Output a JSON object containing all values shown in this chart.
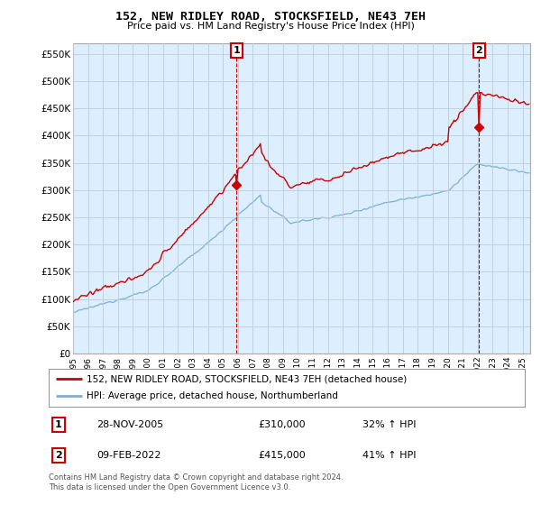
{
  "title": "152, NEW RIDLEY ROAD, STOCKSFIELD, NE43 7EH",
  "subtitle": "Price paid vs. HM Land Registry's House Price Index (HPI)",
  "yticks": [
    0,
    50000,
    100000,
    150000,
    200000,
    250000,
    300000,
    350000,
    400000,
    450000,
    500000,
    550000
  ],
  "ytick_labels": [
    "£0",
    "£50K",
    "£100K",
    "£150K",
    "£200K",
    "£250K",
    "£300K",
    "£350K",
    "£400K",
    "£450K",
    "£500K",
    "£550K"
  ],
  "xlim_start": 1995.0,
  "xlim_end": 2025.5,
  "ylim_min": 0,
  "ylim_max": 570000,
  "sale1_year": 2005.91,
  "sale1_y": 310000,
  "sale2_year": 2022.11,
  "sale2_y": 415000,
  "legend_line1": "152, NEW RIDLEY ROAD, STOCKSFIELD, NE43 7EH (detached house)",
  "legend_line2": "HPI: Average price, detached house, Northumberland",
  "annot1_label": "1",
  "annot1_date": "28-NOV-2005",
  "annot1_price": "£310,000",
  "annot1_hpi": "32% ↑ HPI",
  "annot2_label": "2",
  "annot2_date": "09-FEB-2022",
  "annot2_price": "£415,000",
  "annot2_hpi": "41% ↑ HPI",
  "footer": "Contains HM Land Registry data © Crown copyright and database right 2024.\nThis data is licensed under the Open Government Licence v3.0.",
  "price_color": "#cc0000",
  "hpi_color": "#7fafd4",
  "plot_bg_color": "#ddeeff",
  "grid_color": "#bbccdd"
}
